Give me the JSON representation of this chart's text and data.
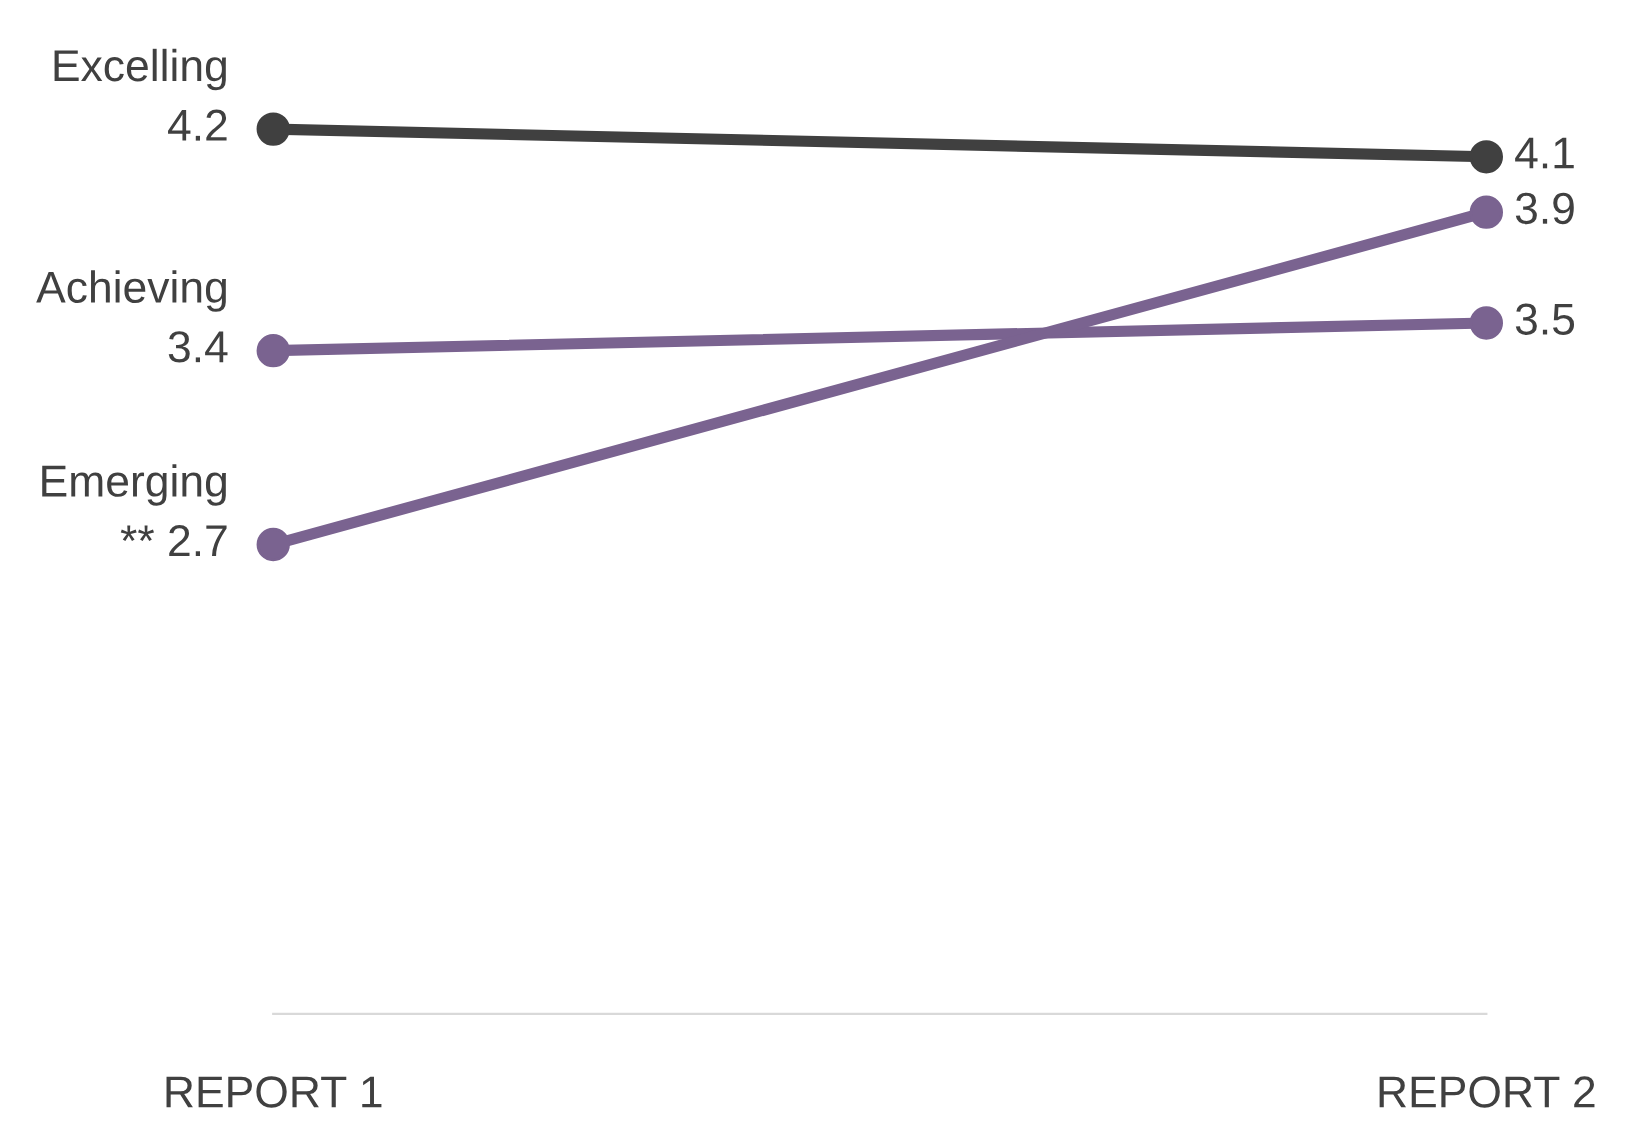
{
  "chart_data": {
    "type": "line",
    "categories": [
      "REPORT 1",
      "REPORT 2"
    ],
    "series": [
      {
        "name": "Excelling",
        "color": "#404040",
        "values": [
          4.2,
          4.1
        ],
        "value_labels": [
          "4.2",
          "4.1"
        ]
      },
      {
        "name": "Achieving",
        "color": "#7a6390",
        "values": [
          3.4,
          3.5
        ],
        "value_labels": [
          "3.4",
          "3.5"
        ]
      },
      {
        "name": "Emerging",
        "color": "#7a6390",
        "values": [
          2.7,
          3.9
        ],
        "value_labels": [
          "** 2.7",
          "3.9"
        ]
      }
    ],
    "tick_labels": "x",
    "marker": "circle",
    "line_style": "solid",
    "grid": false,
    "legend": false
  }
}
